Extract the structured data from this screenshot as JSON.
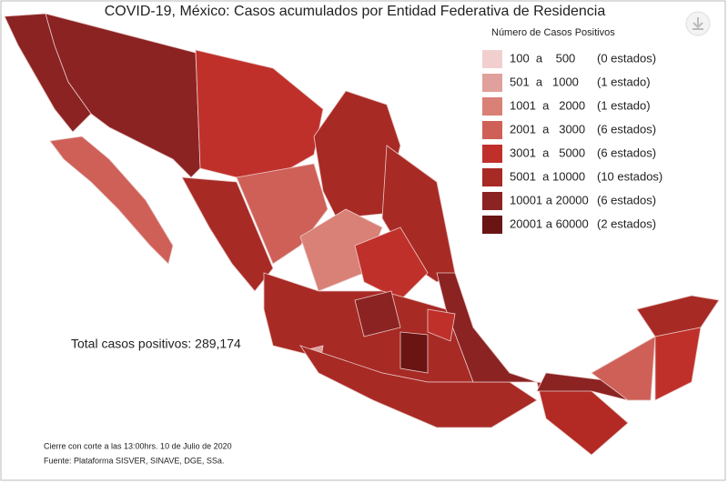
{
  "title": "COVID-19, México: Casos acumulados por Entidad Federativa de Residencia",
  "legend": {
    "title": "Número de Casos Positivos",
    "items": [
      {
        "range": "100  a    500",
        "count": "(0 estados)",
        "color": "#f2cfcf"
      },
      {
        "range": "501  a   1000",
        "count": "(1 estado)",
        "color": "#e0a09b"
      },
      {
        "range": "1001  a   2000",
        "count": "(1 estado)",
        "color": "#d98077"
      },
      {
        "range": "2001  a   3000",
        "count": "(6 estados)",
        "color": "#cf6058"
      },
      {
        "range": "3001  a   5000",
        "count": "(6 estados)",
        "color": "#c0302b"
      },
      {
        "range": "5001  a 10000",
        "count": "(10 estados)",
        "color": "#a82a25"
      },
      {
        "range": "10001 a 20000",
        "count": "(6 estados)",
        "color": "#8b2323"
      },
      {
        "range": "20001 a 60000",
        "count": "(2 estados)",
        "color": "#6b1414"
      }
    ]
  },
  "total": "Total casos positivos: 289,174",
  "footnotes": [
    "Cierre con corte a las 13:00hrs. 10 de Julio de 2020",
    "Fuente: Plataforma SISVER, SINAVE, DGE, SSa."
  ]
}
